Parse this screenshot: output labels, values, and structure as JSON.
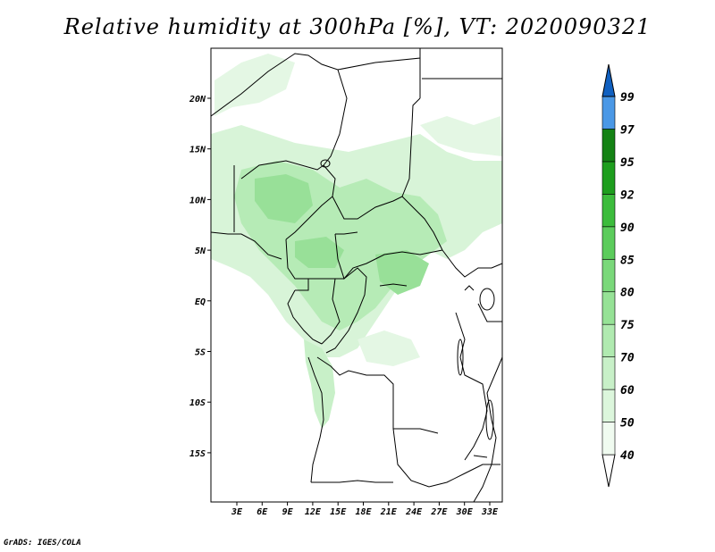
{
  "title": "Relative humidity at 300hPa [%], VT: 2020090321",
  "credit": "GrADS: IGES/COLA",
  "map": {
    "lat_labels": [
      "20N",
      "15N",
      "10N",
      "5N",
      "EQ",
      "5S",
      "10S",
      "15S"
    ],
    "lon_labels": [
      "3E",
      "6E",
      "9E",
      "12E",
      "15E",
      "18E",
      "21E",
      "24E",
      "27E",
      "30E",
      "33E"
    ]
  },
  "colorbar": {
    "levels": [
      "40",
      "50",
      "60",
      "70",
      "75",
      "80",
      "85",
      "90",
      "92",
      "95",
      "97",
      "99"
    ],
    "colors": [
      "#f0fbf0",
      "#dcf6dc",
      "#c8f0c8",
      "#b0eab0",
      "#96e296",
      "#7ad87a",
      "#5ccc5c",
      "#3cbc3c",
      "#1e9e1e",
      "#148214",
      "#4a98e6",
      "#2070d0",
      "#1060c0"
    ]
  },
  "colors": {
    "light": "#d8f4d8",
    "medium": "#b6ebb6",
    "dark": "#98e098",
    "border": "#000000"
  }
}
